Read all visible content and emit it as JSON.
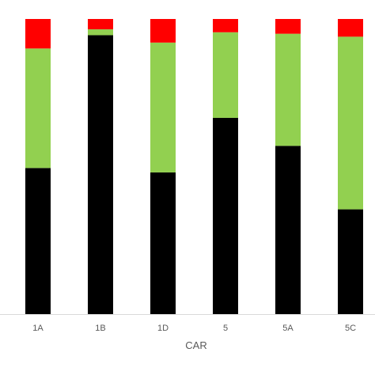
{
  "chart_data": {
    "type": "bar",
    "stacked": true,
    "percent_stacked": true,
    "categories": [
      "1A",
      "1B",
      "1D",
      "5",
      "5A",
      "5C"
    ],
    "series": [
      {
        "color": "#000000",
        "values": [
          49.5,
          94.5,
          48,
          66.5,
          57,
          35.5
        ]
      },
      {
        "color": "#92D050",
        "values": [
          40.5,
          2,
          44,
          29,
          38,
          58.5
        ]
      },
      {
        "color": "#FF0000",
        "values": [
          10,
          3.5,
          8,
          4.5,
          5,
          6
        ]
      }
    ],
    "xlabel": "CAR",
    "ylim": [
      0,
      100
    ],
    "grid": false,
    "legend": "none"
  }
}
